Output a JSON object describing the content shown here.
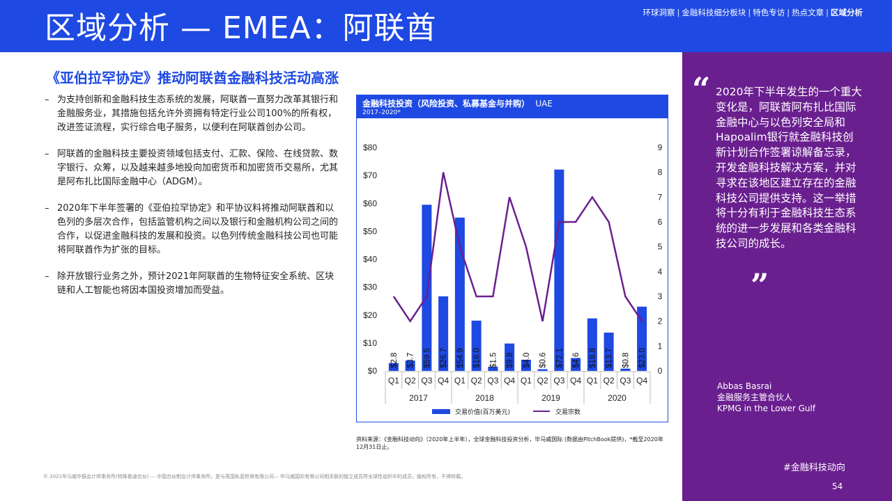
{
  "header": {
    "title": "区域分析 — EMEA：阿联酋",
    "nav": [
      "环球洞察",
      "金融科技细分板块",
      "特色专访",
      "热点文章",
      "区域分析"
    ],
    "active_nav": "区域分析"
  },
  "subtitle": "《亚伯拉罕协定》推动阿联酋金融科技活动高涨",
  "bullets": [
    "为支持创新和金融科技生态系统的发展，阿联酋一直努力改革其银行和金融服务业，其措施包括允许外资拥有特定行业公司100%的所有权，改进签证流程，实行综合电子服务，以便利在阿联酋创办公司。",
    "阿联酋的金融科技主要投资领域包括支付、汇款、保险、在线贷款、数字银行、众筹，以及越来越多地投向加密货币和加密货币交易所，尤其是阿布扎比国际金融中心（ADGM）。",
    "2020年下半年签署的《亚伯拉罕协定》和平协议料将推动阿联酋和以色列的多层次合作，包括监管机构之间以及银行和金融机构公司之间的合作，以促进金融科技的发展和投资。以色列传统金融科技公司也可能将阿联酋作为扩张的目标。",
    "除开放银行业务之外，预计2021年阿联酋的生物特征安全系统、区块链和人工智能也将因本国投资增加而受益。"
  ],
  "chart_header": {
    "title": "金融科技投资（风险投资、私募基金与并购）",
    "region": "UAE",
    "period": "2017–2020*"
  },
  "chart_data": {
    "type": "bar",
    "categories": [
      "Q1",
      "Q2",
      "Q3",
      "Q4",
      "Q1",
      "Q2",
      "Q3",
      "Q4",
      "Q1",
      "Q2",
      "Q3",
      "Q4",
      "Q1",
      "Q2",
      "Q3",
      "Q4"
    ],
    "years": [
      "2017",
      "2018",
      "2019",
      "2020"
    ],
    "series": [
      {
        "name": "交易价值(百万美元)",
        "type": "bar",
        "axis": "left",
        "color": "#1e49e2",
        "values": [
          2.8,
          3.7,
          59.5,
          26.7,
          54.9,
          18.0,
          1.5,
          9.8,
          4.0,
          0.6,
          72.1,
          4.6,
          18.8,
          13.7,
          0.8,
          23.0
        ],
        "labels": [
          "$2.8",
          "$3.7",
          "$59.5",
          "$26.7",
          "$54.9",
          "$18.0",
          "$1.5",
          "$9.8",
          "$4.0",
          "$0.6",
          "$72.1",
          "$4.6",
          "$18.8",
          "$13.7",
          "$0.8",
          "$23.0"
        ]
      },
      {
        "name": "交易宗数",
        "type": "line",
        "axis": "right",
        "color": "#6a1f8f",
        "values": [
          3,
          2,
          3,
          8,
          5,
          3,
          3,
          7,
          5,
          2,
          6,
          6,
          7,
          6,
          3,
          2
        ]
      }
    ],
    "y_left": {
      "min": 0,
      "max": 80,
      "ticks": [
        "$0",
        "$10",
        "$20",
        "$30",
        "$40",
        "$50",
        "$60",
        "$70",
        "$80"
      ]
    },
    "y_right": {
      "min": 0,
      "max": 9,
      "ticks": [
        "0",
        "1",
        "2",
        "3",
        "4",
        "5",
        "6",
        "7",
        "8",
        "9"
      ]
    },
    "grid": false,
    "legend": "bottom"
  },
  "source": "资料来源：《金融科技动向》（2020年上半年），全球金融科技投资分析，毕马威国际 (数据由PitchBook提供)，*截至2020年12月31日止。",
  "footer": "© 2021毕马威华振会计师事务所(特殊普通合伙) — 中国合伙制会计师事务所，是与英国私营担保有限公司— 毕马威国际有限公司相关联的独立成员所全球性组织中的成员。版权所有，不得转载。",
  "quote": {
    "open_mark": "“",
    "close_mark": "”",
    "text": "2020年下半年发生的一个重大变化是，阿联酋阿布扎比国际金融中心与以色列安全局和Hapoalim银行就金融科技创新计划合作签署谅解备忘录，开发金融科技解决方案，并对寻求在该地区建立存在的金融科技公司提供支持。这一举措将十分有利于金融科技生态系统的进一步发展和各类金融科技公司的成长。",
    "author_name": "Abbas Basrai",
    "author_title": "金融服务主管合伙人",
    "author_org": "KPMG in the Lower Gulf"
  },
  "hashtag": "#金融科技动向",
  "page_number": "54"
}
